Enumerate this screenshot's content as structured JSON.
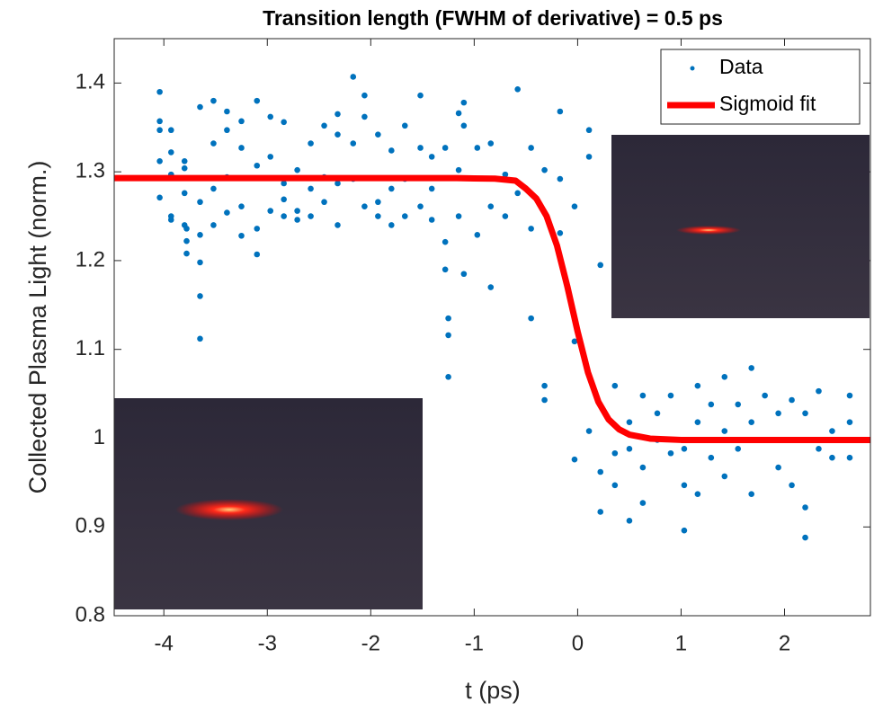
{
  "chart_data": {
    "type": "scatter",
    "title": "Transition length (FWHM of derivative) = 0.5 ps",
    "xlabel": "t (ps)",
    "ylabel": "Collected Plasma Light (norm.)",
    "xlim": [
      -4.48,
      2.83
    ],
    "ylim": [
      0.8,
      1.45
    ],
    "xticks": [
      -4,
      -3,
      -2,
      -1,
      0,
      1,
      2
    ],
    "yticks": [
      0.8,
      0.9,
      1,
      1.1,
      1.2,
      1.3,
      1.4
    ],
    "legend": "upper right",
    "series": [
      {
        "name": "Data",
        "type": "scatter",
        "color": "#0072bd",
        "x": [
          -4.04,
          -4.04,
          -4.04,
          -4.04,
          -4.04,
          -3.93,
          -3.93,
          -3.93,
          -3.93,
          -3.93,
          -3.8,
          -3.8,
          -3.8,
          -3.8,
          -3.78,
          -3.78,
          -3.78,
          -3.65,
          -3.65,
          -3.65,
          -3.65,
          -3.65,
          -3.65,
          -3.52,
          -3.52,
          -3.52,
          -3.52,
          -3.39,
          -3.39,
          -3.39,
          -3.39,
          -3.25,
          -3.25,
          -3.25,
          -3.25,
          -3.1,
          -3.1,
          -3.1,
          -3.1,
          -2.97,
          -2.97,
          -2.97,
          -2.84,
          -2.84,
          -2.84,
          -2.84,
          -2.71,
          -2.71,
          -2.71,
          -2.58,
          -2.58,
          -2.58,
          -2.45,
          -2.45,
          -2.45,
          -2.32,
          -2.32,
          -2.32,
          -2.32,
          -2.17,
          -2.17,
          -2.17,
          -2.06,
          -2.06,
          -2.06,
          -1.93,
          -1.93,
          -1.93,
          -1.8,
          -1.8,
          -1.8,
          -1.67,
          -1.67,
          -1.67,
          -1.52,
          -1.52,
          -1.52,
          -1.41,
          -1.41,
          -1.41,
          -1.28,
          -1.28,
          -1.28,
          -1.25,
          -1.25,
          -1.25,
          -1.15,
          -1.15,
          -1.15,
          -1.1,
          -1.1,
          -1.1,
          -0.97,
          -0.97,
          -0.84,
          -0.84,
          -0.84,
          -0.7,
          -0.7,
          -0.58,
          -0.58,
          -0.45,
          -0.45,
          -0.45,
          -0.32,
          -0.32,
          -0.32,
          -0.17,
          -0.17,
          -0.17,
          -0.03,
          -0.03,
          -0.03,
          0.11,
          0.11,
          0.11,
          0.22,
          0.22,
          0.22,
          0.36,
          0.36,
          0.36,
          0.5,
          0.5,
          0.5,
          0.63,
          0.63,
          0.63,
          0.77,
          0.77,
          0.9,
          0.9,
          1.03,
          1.03,
          1.03,
          1.16,
          1.16,
          1.16,
          1.29,
          1.29,
          1.42,
          1.42,
          1.42,
          1.55,
          1.55,
          1.68,
          1.68,
          1.68,
          1.81,
          1.81,
          1.94,
          1.94,
          2.07,
          2.07,
          2.2,
          2.2,
          2.2,
          2.33,
          2.33,
          2.46,
          2.46,
          2.63,
          2.63,
          2.63
        ],
        "y": [
          1.39,
          1.357,
          1.347,
          1.271,
          1.312,
          1.347,
          1.246,
          1.25,
          1.297,
          1.322,
          1.312,
          1.276,
          1.24,
          1.304,
          1.236,
          1.208,
          1.222,
          1.198,
          1.16,
          1.112,
          1.229,
          1.266,
          1.373,
          1.38,
          1.332,
          1.24,
          1.281,
          1.368,
          1.347,
          1.294,
          1.254,
          1.357,
          1.228,
          1.327,
          1.261,
          1.38,
          1.307,
          1.236,
          1.207,
          1.362,
          1.317,
          1.256,
          1.356,
          1.287,
          1.25,
          1.269,
          1.302,
          1.256,
          1.246,
          1.332,
          1.281,
          1.25,
          1.352,
          1.294,
          1.266,
          1.365,
          1.342,
          1.24,
          1.287,
          1.407,
          1.332,
          1.292,
          1.386,
          1.362,
          1.261,
          1.342,
          1.266,
          1.25,
          1.324,
          1.281,
          1.24,
          1.352,
          1.292,
          1.25,
          1.386,
          1.327,
          1.261,
          1.317,
          1.281,
          1.246,
          1.327,
          1.221,
          1.19,
          1.116,
          1.069,
          1.135,
          1.366,
          1.302,
          1.25,
          1.378,
          1.352,
          1.185,
          1.327,
          1.229,
          1.332,
          1.261,
          1.17,
          1.297,
          1.25,
          1.393,
          1.276,
          1.327,
          1.236,
          1.135,
          1.302,
          1.059,
          1.043,
          1.368,
          1.292,
          1.231,
          1.261,
          1.109,
          0.976,
          1.347,
          1.317,
          1.008,
          1.195,
          0.962,
          0.917,
          1.059,
          0.983,
          0.947,
          0.907,
          1.018,
          0.988,
          1.048,
          0.927,
          0.967,
          1.028,
          0.998,
          1.048,
          0.983,
          0.896,
          0.988,
          0.947,
          1.059,
          1.018,
          0.937,
          1.038,
          0.978,
          1.069,
          1.008,
          0.957,
          1.038,
          0.988,
          1.079,
          1.018,
          0.937,
          1.048,
          0.998,
          1.028,
          0.967,
          1.043,
          0.947,
          1.028,
          0.922,
          0.888,
          1.053,
          0.988,
          1.008,
          0.978,
          1.048,
          1.018,
          0.978
        ]
      },
      {
        "name": "Sigmoid fit",
        "type": "line",
        "color": "#ff0000",
        "x": [
          -4.48,
          -3,
          -2,
          -1.5,
          -1.2,
          -1,
          -0.8,
          -0.6,
          -0.5,
          -0.4,
          -0.3,
          -0.2,
          -0.1,
          0,
          0.1,
          0.2,
          0.3,
          0.4,
          0.5,
          0.7,
          1,
          1.5,
          2.83
        ],
        "y": [
          1.293,
          1.293,
          1.293,
          1.293,
          1.293,
          1.2926,
          1.2923,
          1.29,
          1.281,
          1.27,
          1.25,
          1.217,
          1.171,
          1.12,
          1.074,
          1.041,
          1.021,
          1.01,
          1.004,
          0.9995,
          0.998,
          0.998,
          0.998
        ]
      }
    ]
  }
}
